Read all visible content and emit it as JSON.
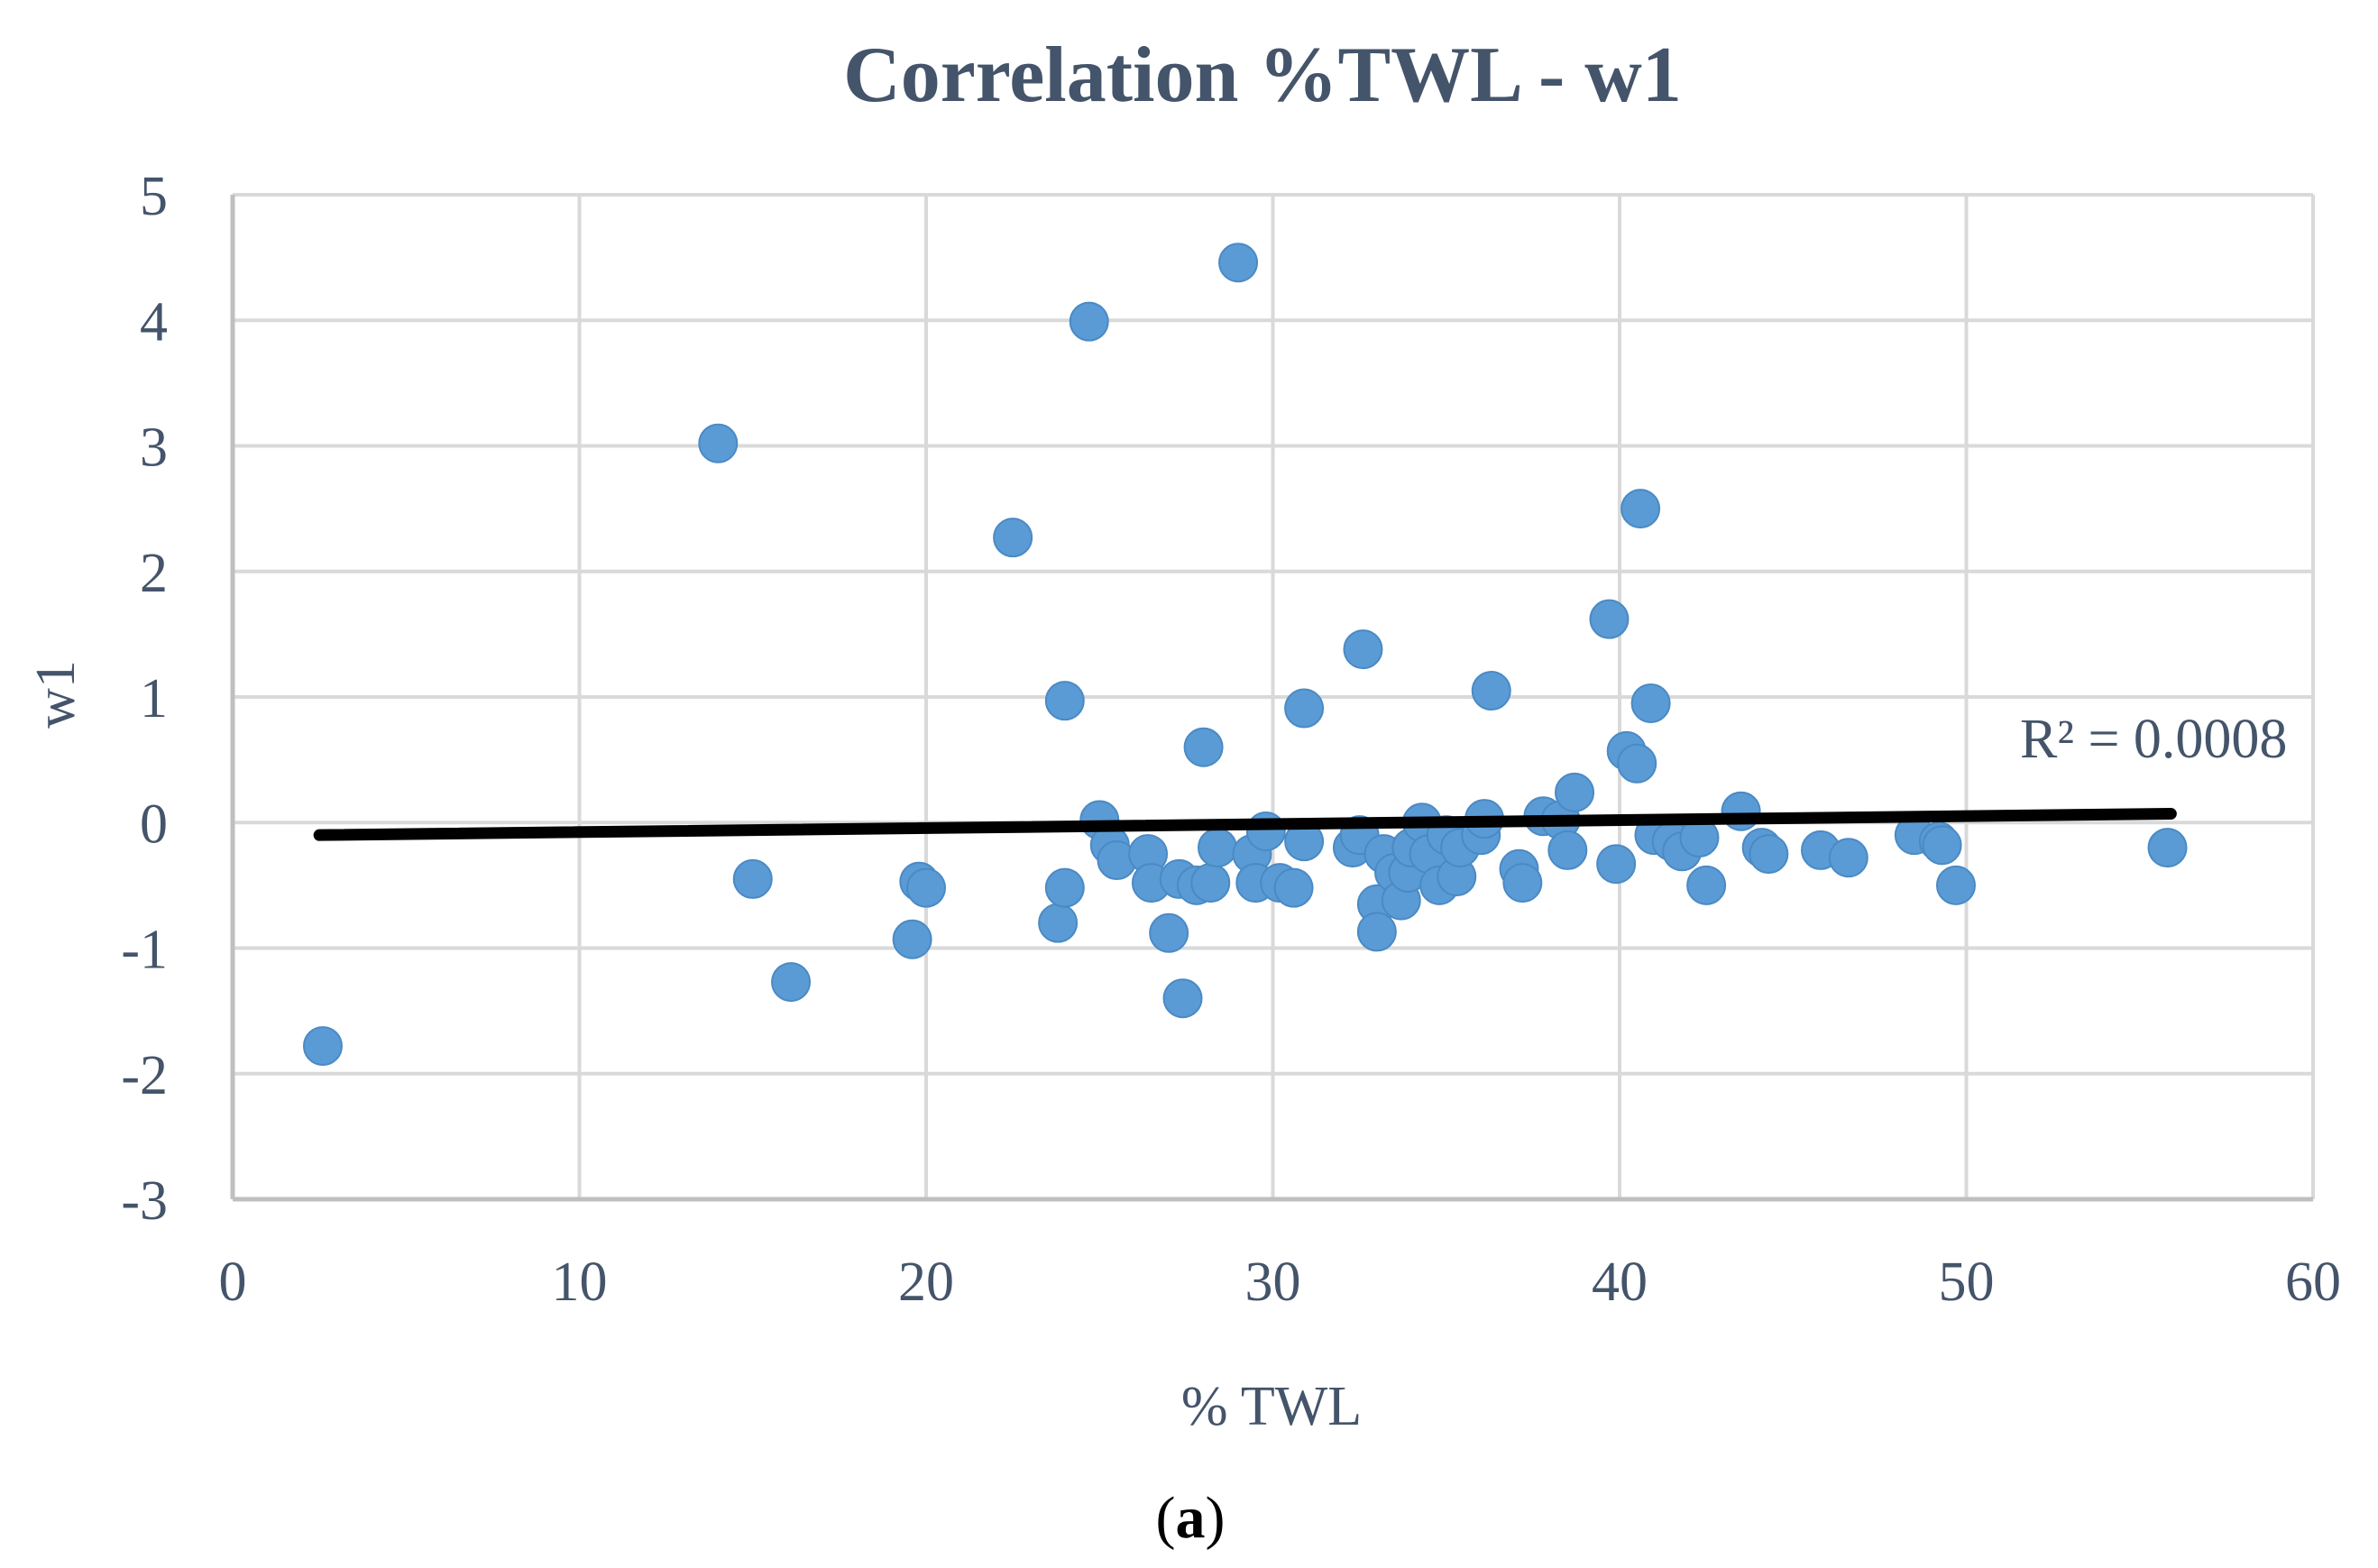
{
  "caption": {
    "open": "(",
    "letter": "a",
    "close": ")"
  },
  "colors": {
    "point": "#5b9bd5",
    "grid": "#d9d9d9",
    "axis": "#bfbfbf",
    "trendline": "#000000",
    "text": "#44546a"
  },
  "chart_data": {
    "type": "scatter",
    "title": "Correlation %TWL - w1",
    "xlabel": "% TWL",
    "ylabel": "w1",
    "xlim": [
      0,
      60
    ],
    "ylim": [
      -3,
      5
    ],
    "xticks": [
      0,
      10,
      20,
      30,
      40,
      50,
      60
    ],
    "yticks": [
      -3,
      -2,
      -1,
      0,
      1,
      2,
      3,
      4,
      5
    ],
    "grid": true,
    "series": [
      {
        "name": "w1",
        "points": [
          [
            2.6,
            -1.78
          ],
          [
            14.0,
            3.02
          ],
          [
            15.0,
            -0.45
          ],
          [
            16.1,
            -1.27
          ],
          [
            19.6,
            -0.93
          ],
          [
            19.8,
            -0.47
          ],
          [
            20.0,
            -0.52
          ],
          [
            22.5,
            2.27
          ],
          [
            23.8,
            -0.8
          ],
          [
            24.0,
            0.97
          ],
          [
            24.0,
            -0.52
          ],
          [
            24.7,
            3.99
          ],
          [
            25.0,
            0.02
          ],
          [
            25.3,
            -0.18
          ],
          [
            25.5,
            -0.3
          ],
          [
            26.4,
            -0.25
          ],
          [
            26.5,
            -0.48
          ],
          [
            27.0,
            -0.88
          ],
          [
            27.3,
            -0.45
          ],
          [
            27.4,
            -1.4
          ],
          [
            27.8,
            -0.5
          ],
          [
            28.0,
            0.6
          ],
          [
            28.2,
            -0.48
          ],
          [
            28.4,
            -0.2
          ],
          [
            29.0,
            4.46
          ],
          [
            29.4,
            -0.25
          ],
          [
            29.5,
            -0.48
          ],
          [
            29.8,
            -0.07
          ],
          [
            30.2,
            -0.48
          ],
          [
            30.6,
            -0.52
          ],
          [
            30.9,
            0.91
          ],
          [
            30.9,
            -0.15
          ],
          [
            32.3,
            -0.2
          ],
          [
            32.5,
            -0.1
          ],
          [
            32.6,
            1.38
          ],
          [
            33.0,
            -0.65
          ],
          [
            33.0,
            -0.87
          ],
          [
            33.2,
            -0.25
          ],
          [
            33.5,
            -0.4
          ],
          [
            33.7,
            -0.62
          ],
          [
            33.9,
            -0.4
          ],
          [
            34.0,
            -0.2
          ],
          [
            34.3,
            0.0
          ],
          [
            34.5,
            -0.25
          ],
          [
            34.8,
            -0.5
          ],
          [
            35.0,
            -0.1
          ],
          [
            35.3,
            -0.43
          ],
          [
            35.4,
            -0.2
          ],
          [
            36.0,
            -0.1
          ],
          [
            36.1,
            0.03
          ],
          [
            36.3,
            1.05
          ],
          [
            37.1,
            -0.37
          ],
          [
            37.2,
            -0.48
          ],
          [
            37.8,
            0.05
          ],
          [
            38.3,
            0.02
          ],
          [
            38.5,
            -0.22
          ],
          [
            38.7,
            0.24
          ],
          [
            39.7,
            1.62
          ],
          [
            39.9,
            -0.33
          ],
          [
            40.2,
            0.57
          ],
          [
            40.5,
            0.47
          ],
          [
            40.6,
            2.5
          ],
          [
            40.9,
            0.95
          ],
          [
            41.0,
            -0.1
          ],
          [
            41.5,
            -0.15
          ],
          [
            41.8,
            -0.23
          ],
          [
            42.3,
            -0.12
          ],
          [
            42.5,
            -0.5
          ],
          [
            43.5,
            0.09
          ],
          [
            44.1,
            -0.2
          ],
          [
            44.3,
            -0.25
          ],
          [
            45.8,
            -0.22
          ],
          [
            46.6,
            -0.28
          ],
          [
            48.5,
            -0.1
          ],
          [
            49.2,
            -0.15
          ],
          [
            49.3,
            -0.18
          ],
          [
            49.7,
            -0.5
          ],
          [
            55.8,
            -0.2
          ]
        ]
      }
    ],
    "trendline": {
      "type": "linear",
      "x": [
        2.5,
        55.9
      ],
      "y": [
        -0.1,
        0.07
      ],
      "label": "R² = 0.0008"
    }
  }
}
